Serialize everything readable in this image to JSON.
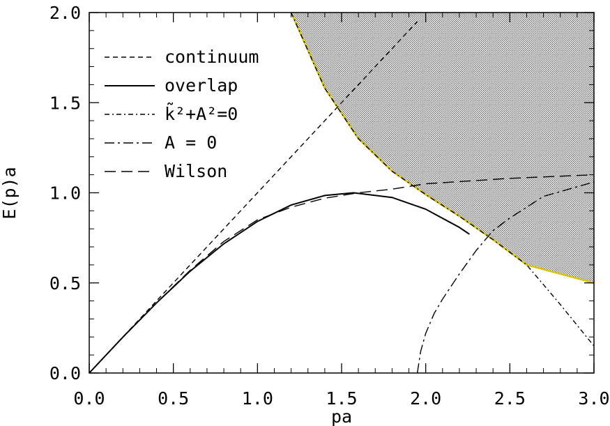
{
  "chart_data": {
    "type": "line",
    "xlabel": "pa",
    "ylabel": "E(p)a",
    "xlim": [
      0.0,
      3.0
    ],
    "ylim": [
      0.0,
      2.0
    ],
    "grid": false,
    "legend_placement": "top-left",
    "x_ticks": [
      "0.0",
      "0.5",
      "1.0",
      "1.5",
      "2.0",
      "2.5",
      "3.0"
    ],
    "y_ticks": [
      "0.0",
      "0.5",
      "1.0",
      "1.5",
      "2.0"
    ],
    "shaded_region": {
      "boundary_color": "#d8c400",
      "fill": "dotted-gray"
    },
    "series": [
      {
        "name": "continuum",
        "dash": "short-dash",
        "x": [
          0.0,
          0.5,
          1.0,
          1.5,
          1.95
        ],
        "y": [
          0.0,
          0.5,
          1.0,
          1.5,
          1.95
        ]
      },
      {
        "name": "overlap",
        "dash": "solid",
        "x": [
          0.0,
          0.2,
          0.4,
          0.6,
          0.8,
          1.0,
          1.2,
          1.4,
          1.57,
          1.8,
          2.0,
          2.2,
          2.26
        ],
        "y": [
          0.0,
          0.199,
          0.389,
          0.565,
          0.717,
          0.841,
          0.932,
          0.985,
          1.0,
          0.974,
          0.909,
          0.808,
          0.77
        ]
      },
      {
        "name": "k̃²+A²=0",
        "dash": "dash-dot",
        "x": [
          1.2,
          1.4,
          1.6,
          1.8,
          2.0,
          2.2,
          2.4,
          2.6,
          2.8,
          3.0
        ],
        "y": [
          2.0,
          1.58,
          1.3,
          1.12,
          0.99,
          0.87,
          0.74,
          0.6,
          0.38,
          0.15
        ]
      },
      {
        "name": "A = 0",
        "dash": "long-dash-dot",
        "x": [
          1.95,
          1.97,
          2.0,
          2.05,
          2.1,
          2.2,
          2.3,
          2.4,
          2.5,
          2.7,
          3.0
        ],
        "y": [
          0.0,
          0.12,
          0.22,
          0.33,
          0.41,
          0.55,
          0.68,
          0.79,
          0.86,
          0.98,
          1.06
        ]
      },
      {
        "name": "Wilson",
        "dash": "long-dash",
        "x": [
          0.0,
          0.2,
          0.4,
          0.6,
          0.8,
          1.0,
          1.2,
          1.4,
          1.6,
          1.8,
          2.0,
          2.5,
          3.0
        ],
        "y": [
          0.0,
          0.2,
          0.39,
          0.57,
          0.73,
          0.85,
          0.92,
          0.97,
          1.0,
          1.02,
          1.05,
          1.08,
          1.1
        ]
      }
    ]
  }
}
